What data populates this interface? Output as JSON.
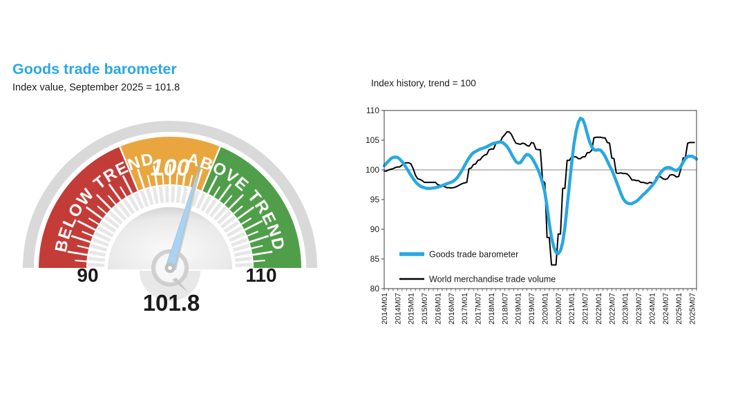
{
  "left_panel": {
    "title": "Goods trade barometer",
    "title_color": "#29A8E0",
    "subtitle": "Index value, September 2025 = 101.8",
    "gauge": {
      "min": 90,
      "max": 110,
      "value": 101.8,
      "value_label": "101.8",
      "min_label": "90",
      "max_label": "110",
      "center_label": "100",
      "below_label": "BELOW TREND",
      "above_label": "ABOVE TREND",
      "bands": [
        {
          "from": 90,
          "to": 97.5,
          "color": "#C43C38"
        },
        {
          "from": 97.5,
          "to": 102.5,
          "color": "#E9A63F"
        },
        {
          "from": 102.5,
          "to": 110,
          "color": "#509E49"
        }
      ],
      "ring_color": "#D9D9D9",
      "needle_color": "#A9D3F0",
      "tick_step": 0.5
    }
  },
  "chart_data": {
    "type": "line",
    "title": "Index history, trend = 100",
    "x_monthly_start": "2014M01",
    "x_tick_labels": [
      "2014M01",
      "2014M07",
      "2015M01",
      "2015M07",
      "2016M01",
      "2016M07",
      "2017M01",
      "2017M07",
      "2018M01",
      "2018M07",
      "2019M01",
      "2019M07",
      "2020M01",
      "2020M07",
      "2021M01",
      "2021M07",
      "2022M01",
      "2022M07",
      "2023M01",
      "2023M07",
      "2024M01",
      "2024M07",
      "2025M01",
      "2025M07"
    ],
    "ylim": [
      80,
      110
    ],
    "yticks": [
      80,
      85,
      90,
      95,
      100,
      105,
      110
    ],
    "reference_line": 100,
    "grid": "reference line only",
    "legend_position": "inside bottom-left",
    "series": [
      {
        "name": "Goods trade barometer",
        "color": "#29A8E0",
        "width": 4.5,
        "monthly_values": [
          100.7,
          101.1,
          101.5,
          101.9,
          102.1,
          102.15,
          102.1,
          101.8,
          101.4,
          100.9,
          100.3,
          99.7,
          99.1,
          98.5,
          98.0,
          97.6,
          97.3,
          97.1,
          97.0,
          96.9,
          96.9,
          96.9,
          96.95,
          97.0,
          97.1,
          97.2,
          97.35,
          97.5,
          97.65,
          97.8,
          97.9,
          98.1,
          98.4,
          98.8,
          99.4,
          100.0,
          100.7,
          101.4,
          102.0,
          102.5,
          102.9,
          103.1,
          103.3,
          103.5,
          103.6,
          103.75,
          103.9,
          104.1,
          104.3,
          104.45,
          104.55,
          104.65,
          104.7,
          104.6,
          104.35,
          103.95,
          103.4,
          102.7,
          102.0,
          101.4,
          101.15,
          101.2,
          101.7,
          102.3,
          102.6,
          102.5,
          102.1,
          101.5,
          100.8,
          100.0,
          99.0,
          97.8,
          96.2,
          93.8,
          91.0,
          88.6,
          87.0,
          86.1,
          85.9,
          86.4,
          87.8,
          90.3,
          93.8,
          97.5,
          101.0,
          104.2,
          106.5,
          108.0,
          108.7,
          108.5,
          107.5,
          106.1,
          104.8,
          103.9,
          103.4,
          103.3,
          103.4,
          103.3,
          102.9,
          102.3,
          101.5,
          100.7,
          100.0,
          99.1,
          98.1,
          97.1,
          96.1,
          95.2,
          94.7,
          94.4,
          94.3,
          94.3,
          94.5,
          94.7,
          95.0,
          95.4,
          95.8,
          96.1,
          96.5,
          96.9,
          97.3,
          97.8,
          98.4,
          99.0,
          99.6,
          100.0,
          100.3,
          100.4,
          100.4,
          100.2,
          100.0,
          99.9,
          100.1,
          100.6,
          101.3,
          101.9,
          102.25,
          102.3,
          102.3,
          102.1,
          101.8
        ]
      },
      {
        "name": "World merchandise trade volume",
        "color": "#000000",
        "width": 2,
        "monthly_values": [
          99.8,
          99.8,
          100.0,
          100.1,
          100.2,
          100.4,
          100.5,
          100.5,
          100.8,
          101.1,
          101.2,
          101.2,
          101.0,
          100.2,
          99.1,
          98.5,
          98.4,
          98.2,
          97.9,
          97.9,
          97.9,
          97.9,
          97.9,
          97.9,
          97.5,
          97.4,
          97.3,
          97.2,
          97.0,
          97.0,
          96.95,
          97.0,
          97.1,
          97.3,
          97.5,
          97.7,
          97.8,
          97.9,
          100.2,
          100.3,
          100.9,
          101.0,
          101.6,
          101.7,
          102.2,
          102.5,
          102.6,
          103.4,
          103.5,
          103.5,
          104.4,
          104.5,
          104.7,
          105.5,
          105.9,
          106.4,
          106.4,
          106.0,
          105.2,
          104.5,
          104.4,
          104.3,
          104.5,
          104.4,
          104.1,
          104.0,
          104.6,
          104.5,
          103.5,
          103.4,
          103.4,
          98.2,
          97.8,
          88.6,
          88.6,
          84.0,
          84.0,
          84.0,
          89.2,
          89.2,
          96.9,
          96.9,
          101.6,
          101.6,
          102.2,
          102.2,
          102.2,
          101.9,
          101.9,
          102.2,
          102.2,
          102.9,
          102.9,
          103.3,
          105.4,
          105.5,
          105.5,
          105.5,
          105.4,
          105.4,
          104.6,
          104.5,
          102.0,
          101.9,
          99.5,
          99.4,
          99.5,
          99.4,
          99.4,
          99.3,
          98.9,
          98.3,
          98.3,
          98.2,
          98.2,
          97.9,
          97.9,
          97.8,
          97.7,
          97.9,
          97.8,
          97.7,
          98.8,
          98.9,
          98.8,
          98.5,
          98.4,
          98.5,
          99.1,
          99.2,
          99.1,
          98.8,
          98.9,
          100.2,
          102.0,
          102.1,
          104.5,
          104.6,
          104.6,
          104.6
        ]
      }
    ]
  }
}
